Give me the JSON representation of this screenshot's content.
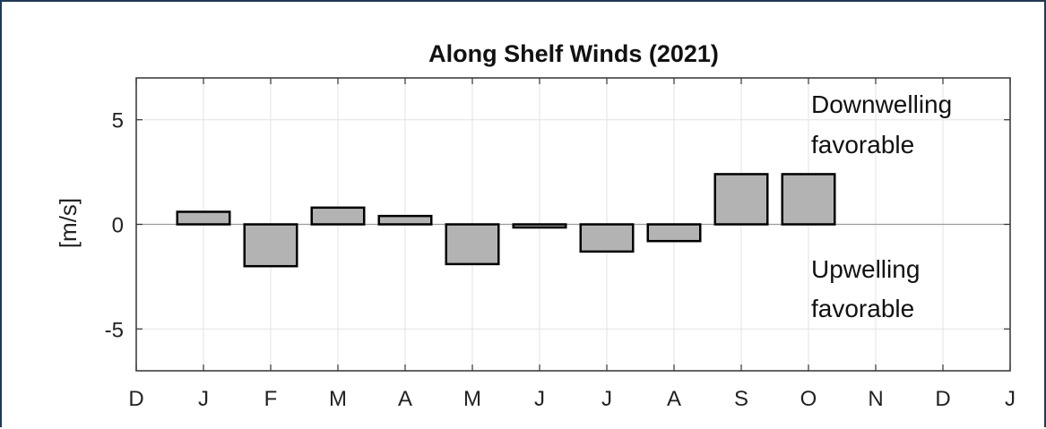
{
  "chart_data": {
    "type": "bar",
    "title": "Along Shelf Winds (2021)",
    "ylabel": "[m/s]",
    "xlabel": "",
    "ylim": [
      -7,
      7
    ],
    "yticks": [
      5,
      0,
      -5
    ],
    "xtick_labels": [
      "D",
      "J",
      "F",
      "M",
      "A",
      "M",
      "J",
      "J",
      "A",
      "S",
      "O",
      "N",
      "D",
      "J"
    ],
    "categories": [
      "J",
      "F",
      "M",
      "A",
      "M",
      "J",
      "J",
      "A",
      "S",
      "O"
    ],
    "values": [
      0.6,
      -2.0,
      0.8,
      0.4,
      -1.9,
      -0.15,
      -1.3,
      -0.8,
      2.4,
      2.4
    ],
    "bar_color": "#b3b3b3",
    "bar_edge_color": "#000000",
    "grid": true,
    "annotations": {
      "top": [
        "Downwelling",
        "favorable"
      ],
      "bottom": [
        "Upwelling",
        "favorable"
      ]
    }
  }
}
